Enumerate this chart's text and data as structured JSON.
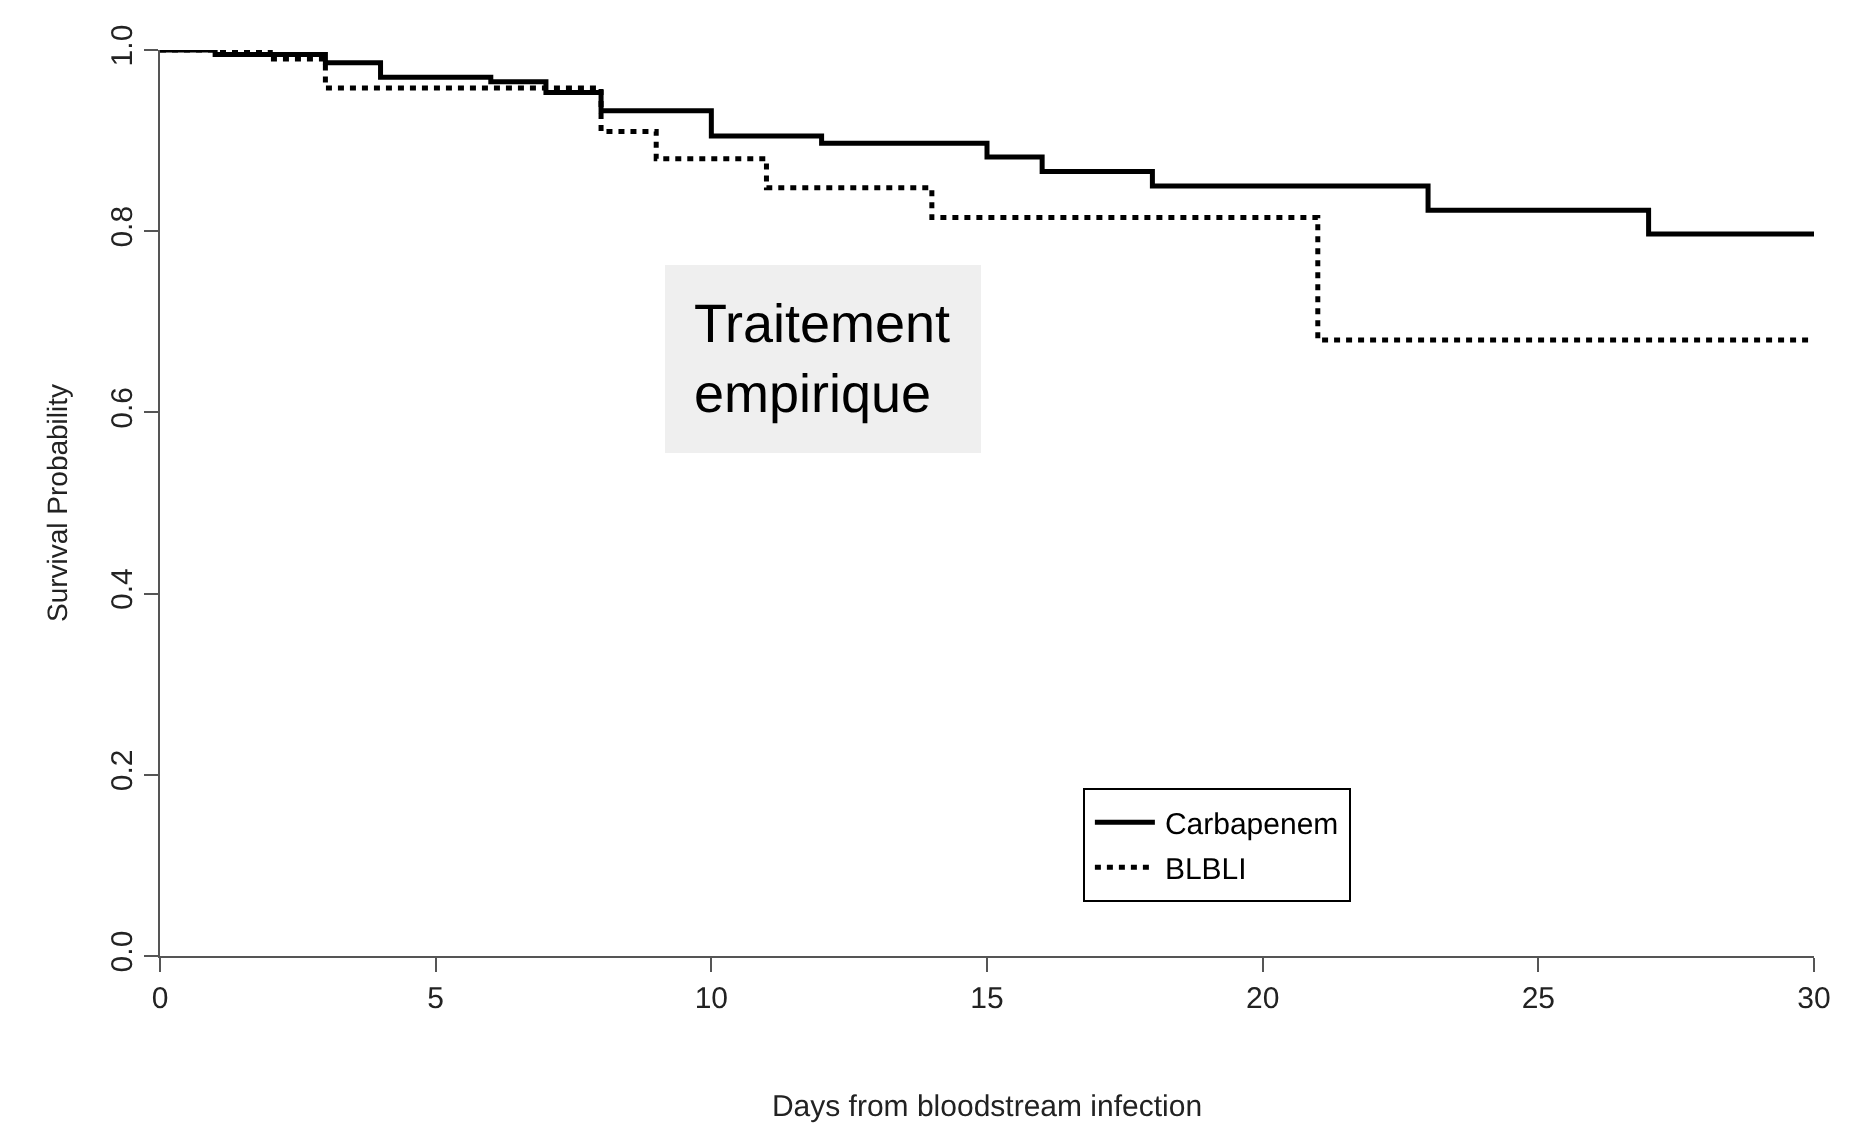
{
  "chart_data": {
    "type": "step",
    "xlabel": "Days from bloodstream infection",
    "ylabel": "Survival Probability",
    "xlim": [
      0,
      30
    ],
    "xticks": [
      0,
      5,
      10,
      15,
      20,
      25,
      30
    ],
    "ylim": [
      0,
      1
    ],
    "yticks": [
      {
        "value": 0,
        "label": "0.0"
      },
      {
        "value": 0.2,
        "label": "0.2"
      },
      {
        "value": 0.4,
        "label": "0.4"
      },
      {
        "value": 0.6,
        "label": "0.6"
      },
      {
        "value": 0.8,
        "label": "0.8"
      },
      {
        "value": 1,
        "label": "1.0"
      }
    ],
    "legend": "bottom right",
    "marker": "none",
    "annotations": [
      "Traitement\nempirique"
    ],
    "series": [
      {
        "name": "Carbapenem",
        "color": "#000000",
        "line_style": "solid",
        "x": [
          0,
          1,
          3,
          4,
          6,
          7,
          8,
          10,
          12,
          15,
          16,
          18,
          23,
          27,
          30
        ],
        "values": [
          1.0,
          0.995,
          0.986,
          0.97,
          0.965,
          0.953,
          0.933,
          0.905,
          0.897,
          0.882,
          0.866,
          0.85,
          0.823,
          0.797,
          0.797
        ]
      },
      {
        "name": "BLBLI",
        "color": "#000000",
        "line_style": "dotted",
        "x": [
          0,
          2,
          3,
          8,
          9,
          11,
          14,
          21,
          30
        ],
        "values": [
          1.0,
          0.99,
          0.958,
          0.91,
          0.88,
          0.848,
          0.815,
          0.68,
          0.68
        ]
      }
    ]
  }
}
